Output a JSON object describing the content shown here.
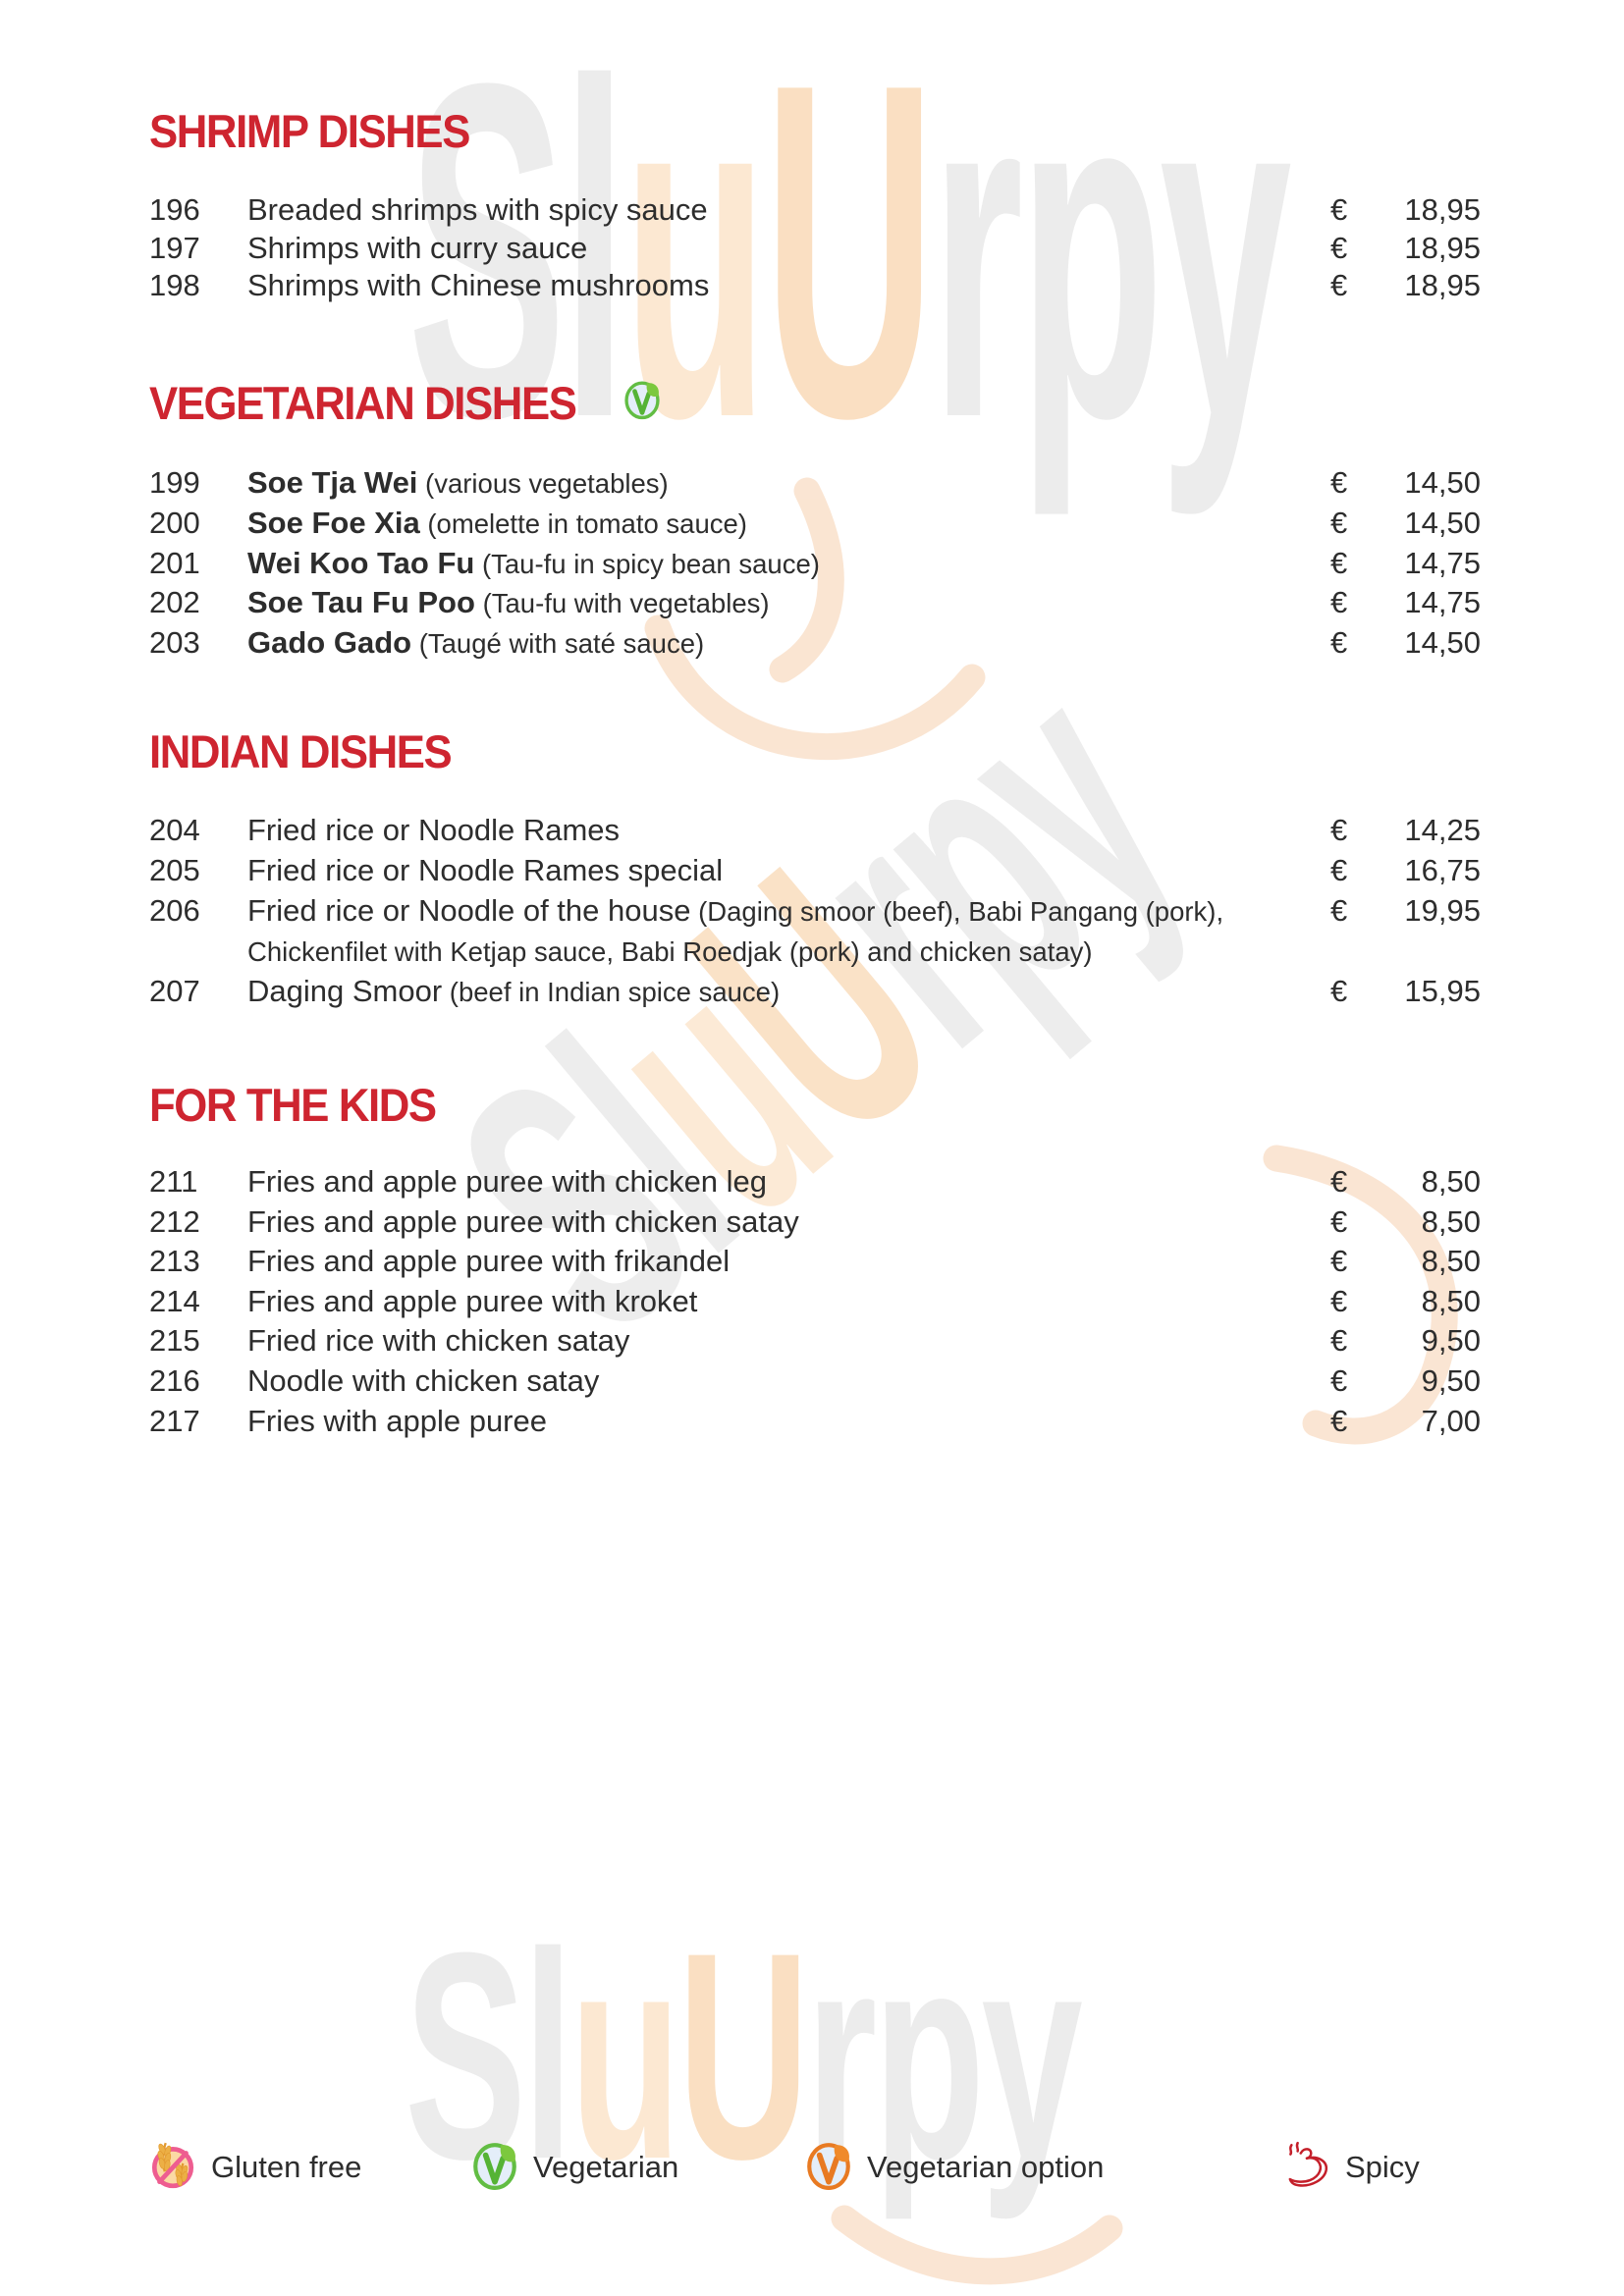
{
  "page_title": "Restaurant menu page",
  "colors": {
    "heading_red": "#ce2530",
    "body_text": "#2d2d2d",
    "watermark_gray": "#ececec",
    "watermark_peach_light": "#fce8d2",
    "watermark_peach": "#fadfc2",
    "swoosh_peach": "#f9dfc8"
  },
  "watermark": {
    "text": "SluUrpy",
    "segments": [
      {
        "text": "Sl",
        "tone": "gray"
      },
      {
        "text": "u",
        "tone": "peach_light"
      },
      {
        "text": "U",
        "tone": "peach"
      },
      {
        "text": "rpy",
        "tone": "gray"
      }
    ]
  },
  "currency_symbol": "€",
  "sections": [
    {
      "id": "shrimp",
      "title": "SHRIMP DISHES",
      "icon": null,
      "bold_names": false,
      "items": [
        {
          "num": "196",
          "name": "Breaded shrimps with spicy sauce",
          "desc": "",
          "price": "18,95"
        },
        {
          "num": "197",
          "name": "Shrimps with curry sauce",
          "desc": "",
          "price": "18,95"
        },
        {
          "num": "198",
          "name": "Shrimps with Chinese mushrooms",
          "desc": "",
          "price": "18,95"
        }
      ]
    },
    {
      "id": "vegetarian",
      "title": "VEGETARIAN DISHES",
      "icon": "vegetarian-icon",
      "bold_names": true,
      "items": [
        {
          "num": "199",
          "name": "Soe Tja Wei",
          "desc": "(various vegetables)",
          "price": "14,50"
        },
        {
          "num": "200",
          "name": "Soe Foe Xia",
          "desc": "(omelette in tomato sauce)",
          "price": "14,50"
        },
        {
          "num": "201",
          "name": "Wei Koo Tao Fu",
          "desc": "(Tau-fu in spicy bean sauce)",
          "price": "14,75"
        },
        {
          "num": "202",
          "name": "Soe Tau Fu Poo",
          "desc": "(Tau-fu with vegetables)",
          "price": "14,75"
        },
        {
          "num": "203",
          "name": "Gado Gado",
          "desc": "(Taugé with saté sauce)",
          "price": "14,50"
        }
      ]
    },
    {
      "id": "indian",
      "title": "INDIAN DISHES",
      "icon": null,
      "bold_names": false,
      "items": [
        {
          "num": "204",
          "name": "Fried rice or Noodle Rames",
          "desc": "",
          "price": "14,25"
        },
        {
          "num": "205",
          "name": "Fried rice or Noodle Rames special",
          "desc": "",
          "price": "16,75"
        },
        {
          "num": "206",
          "name": "Fried rice or Noodle of the house",
          "desc": "(Daging smoor (beef), Babi Pangang (pork), Chickenfilet with Ketjap sauce, Babi Roedjak (pork) and chicken satay)",
          "price": "19,95"
        },
        {
          "num": "207",
          "name": "Daging Smoor",
          "desc": "(beef in Indian spice sauce)",
          "price": "15,95"
        }
      ]
    },
    {
      "id": "kids",
      "title": "FOR THE KIDS",
      "icon": null,
      "bold_names": false,
      "items": [
        {
          "num": "211",
          "name": "Fries and apple puree with chicken leg",
          "desc": "",
          "price": "8,50"
        },
        {
          "num": "212",
          "name": "Fries and apple puree with chicken satay",
          "desc": "",
          "price": "8,50"
        },
        {
          "num": "213",
          "name": "Fries and apple puree with frikandel",
          "desc": "",
          "price": "8,50"
        },
        {
          "num": "214",
          "name": "Fries and apple puree with kroket",
          "desc": "",
          "price": "8,50"
        },
        {
          "num": "215",
          "name": "Fried rice with chicken satay",
          "desc": "",
          "price": "9,50"
        },
        {
          "num": "216",
          "name": "Noodle with chicken satay",
          "desc": "",
          "price": "9,50"
        },
        {
          "num": "217",
          "name": "Fries with apple puree",
          "desc": "",
          "price": "7,00"
        }
      ]
    }
  ],
  "legend": [
    {
      "icon": "gluten-free-icon",
      "label": "Gluten free"
    },
    {
      "icon": "vegetarian-icon",
      "label": "Vegetarian"
    },
    {
      "icon": "vegetarian-option-icon",
      "label": "Vegetarian option"
    },
    {
      "icon": "spicy-icon",
      "label": "Spicy"
    }
  ],
  "icon_colors": {
    "vegetarian": {
      "ring": "#62bd43",
      "check": "#55b335",
      "leaf": "#7cc83e",
      "fill": "#e4eef9"
    },
    "vegetarian_option": {
      "ring": "#e87a22",
      "check": "#e87a22",
      "leaf": "#f08a2a",
      "fill": "#e4eef9"
    },
    "gluten_free": {
      "ring": "#ee5d90",
      "fill": "#fbd9a4",
      "wheat": "#ecaf45",
      "stem": "#e2992f"
    },
    "spicy": {
      "stroke": "#c41f2a"
    }
  }
}
